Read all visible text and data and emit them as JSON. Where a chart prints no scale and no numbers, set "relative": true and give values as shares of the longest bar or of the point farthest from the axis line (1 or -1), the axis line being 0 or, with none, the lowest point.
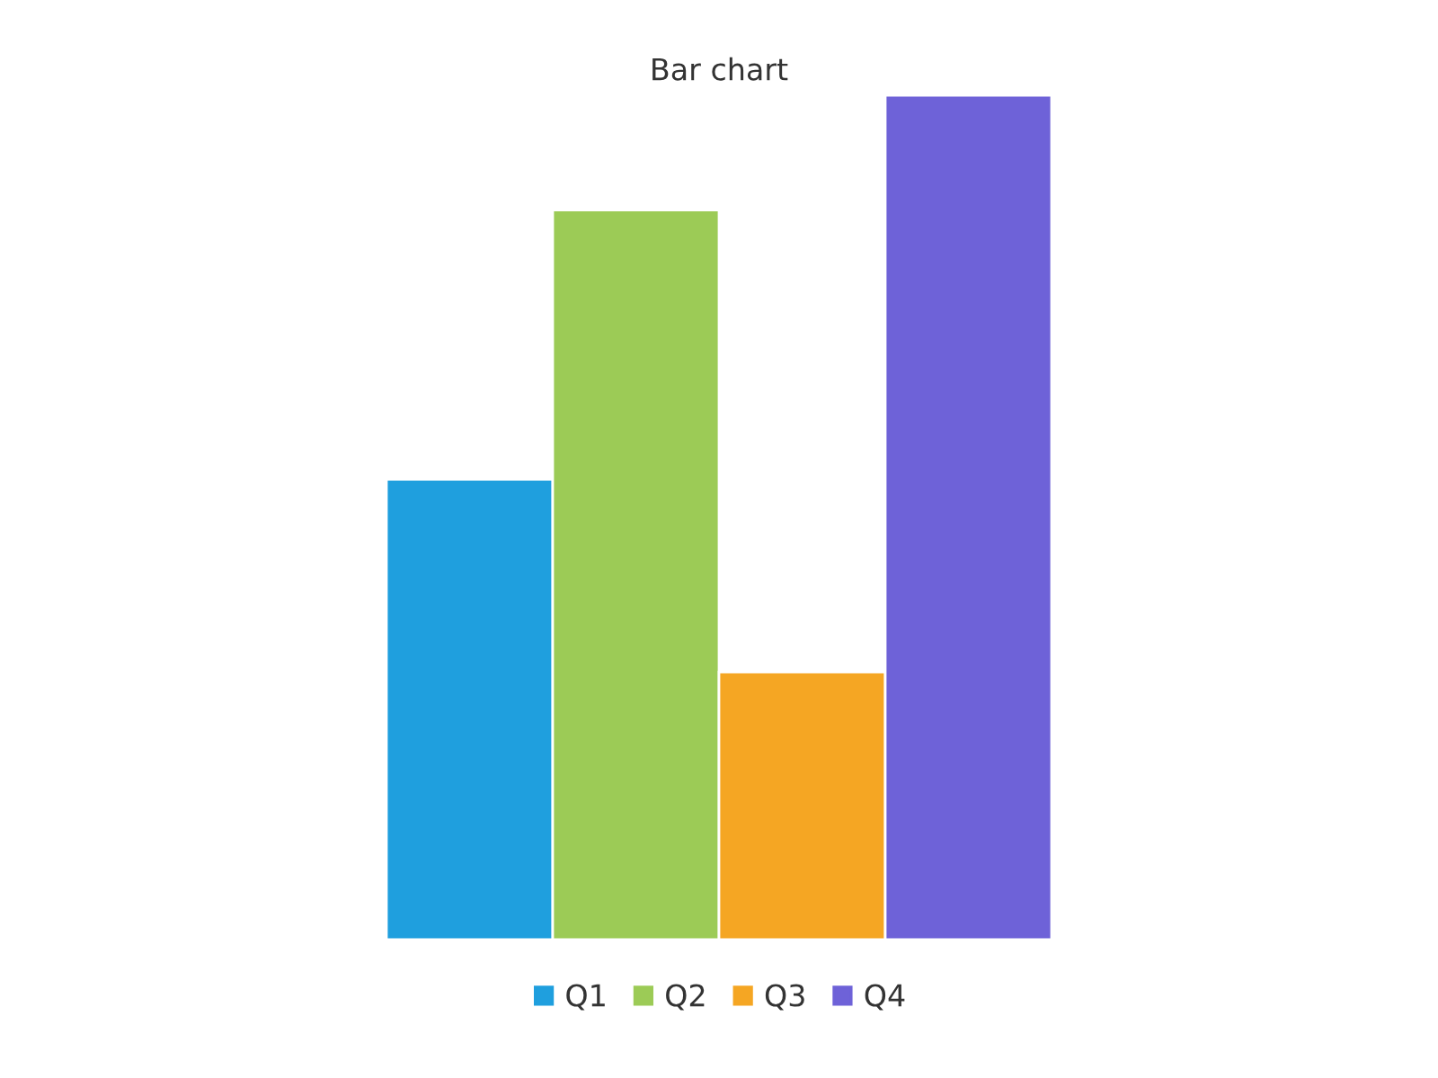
{
  "chart_data": {
    "type": "bar",
    "title": "Bar chart",
    "categories": [
      null
    ],
    "relative": true,
    "grid": false,
    "legend": "bottom",
    "series": [
      {
        "name": "Q1",
        "color": "#1f9fde",
        "values": [
          0.545
        ]
      },
      {
        "name": "Q2",
        "color": "#9ccb56",
        "values": [
          0.864
        ]
      },
      {
        "name": "Q3",
        "color": "#f5a623",
        "values": [
          0.317
        ]
      },
      {
        "name": "Q4",
        "color": "#6e62d8",
        "values": [
          1
        ]
      }
    ]
  }
}
